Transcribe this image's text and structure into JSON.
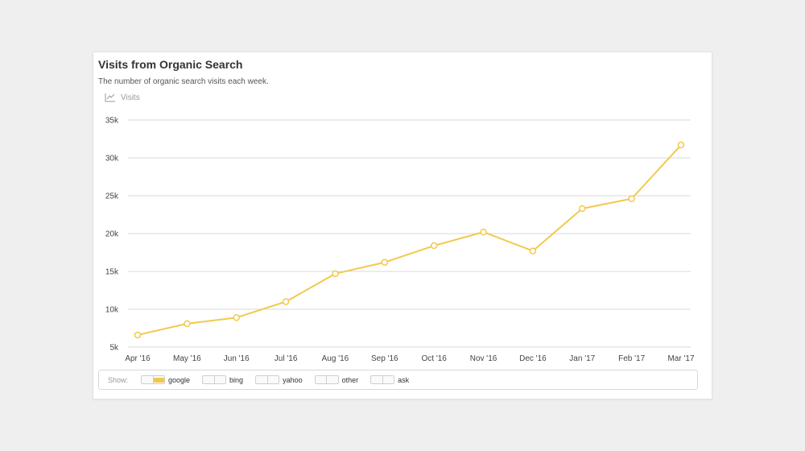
{
  "panel": {
    "title": "Visits from Organic Search",
    "subtitle": "The number of organic search visits each week.",
    "metric_label": "Visits",
    "metric_icon": "line-chart-icon"
  },
  "colors": {
    "series": "#f2c94c",
    "grid": "#d9d9d9",
    "tick_text": "#444444",
    "background": "#ffffff"
  },
  "legend": {
    "show_label": "Show:",
    "items": [
      {
        "name": "google",
        "label": "google",
        "active": true
      },
      {
        "name": "bing",
        "label": "bing",
        "active": false
      },
      {
        "name": "yahoo",
        "label": "yahoo",
        "active": false
      },
      {
        "name": "other",
        "label": "other",
        "active": false
      },
      {
        "name": "ask",
        "label": "ask",
        "active": false
      }
    ]
  },
  "chart_data": {
    "type": "line",
    "title": "Visits from Organic Search",
    "ylabel": "Visits",
    "categories": [
      "Apr '16",
      "May '16",
      "Jun '16",
      "Jul '16",
      "Aug '16",
      "Sep '16",
      "Oct '16",
      "Nov '16",
      "Dec '16",
      "Jan '17",
      "Feb '17",
      "Mar '17"
    ],
    "series": [
      {
        "name": "google",
        "values": [
          6600,
          8100,
          8900,
          11000,
          14700,
          16200,
          18400,
          20200,
          17700,
          23300,
          24600,
          31700
        ]
      }
    ],
    "ylim": [
      5000,
      35000
    ],
    "yticks": [
      5000,
      10000,
      15000,
      20000,
      25000,
      30000,
      35000
    ],
    "ytick_labels": [
      "5k",
      "10k",
      "15k",
      "20k",
      "25k",
      "30k",
      "35k"
    ],
    "grid": true,
    "legend": "bottom"
  }
}
